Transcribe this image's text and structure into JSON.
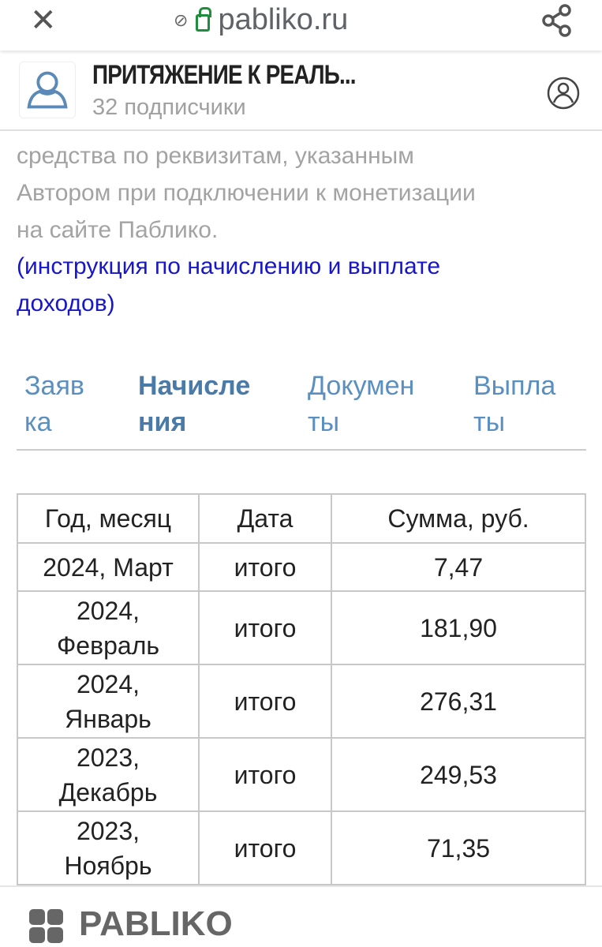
{
  "browser": {
    "url": "pabliko.ru"
  },
  "channel": {
    "title": "ПРИТЯЖЕНИЕ К РЕАЛЬ...",
    "subscribers": "32 подписчики"
  },
  "body": {
    "lines": [
      "средства по реквизитам, указанным",
      "Автором при подключении к монетизации",
      "на сайте Паблико."
    ],
    "link": "(инструкция по начислению и выплате доходов)"
  },
  "tabs": [
    {
      "label": "Заяв ка"
    },
    {
      "label": "Начисле ния",
      "active": true
    },
    {
      "label": "Докумен ты"
    },
    {
      "label": "Выпла ты"
    }
  ],
  "table": {
    "headers": [
      "Год, месяц",
      "Дата",
      "Сумма, руб."
    ],
    "rows": [
      [
        "2024, Март",
        "итого",
        "7,47"
      ],
      [
        "2024, Февраль",
        "итого",
        "181,90"
      ],
      [
        "2024, Январь",
        "итого",
        "276,31"
      ],
      [
        "2023, Декабрь",
        "итого",
        "249,53"
      ],
      [
        "2023, Ноябрь",
        "итого",
        "71,35"
      ]
    ]
  },
  "footer": {
    "logo": "PABLIKO"
  },
  "colors": {
    "accent": "#4a7aa8",
    "link": "#1717c8",
    "lock": "#1e8e3e"
  }
}
